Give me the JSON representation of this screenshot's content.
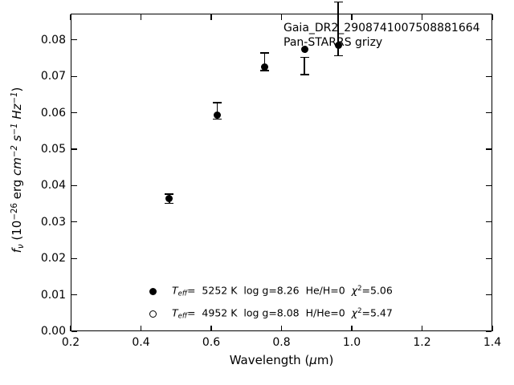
{
  "figure": {
    "background_color": "#ffffff",
    "foreground_color": "#000000"
  },
  "annotation": {
    "line1": "Gaia_DR2_2908741007508881664",
    "line2": "Pan-STARRS grizy"
  },
  "chart_data": {
    "type": "scatter",
    "title": "",
    "xlabel": "Wavelength (μm)",
    "ylabel": "fν (10−26 erg cm−2 s−1 Hz−1)",
    "xlabel_parts": [
      {
        "t": "Wavelength (",
        "s": "n"
      },
      {
        "t": "μ",
        "s": "i"
      },
      {
        "t": "m)",
        "s": "n"
      }
    ],
    "ylabel_parts": [
      {
        "t": "f",
        "s": "i"
      },
      {
        "t": "ν",
        "s": "sub-i"
      },
      {
        "t": " (10",
        "s": "n"
      },
      {
        "t": "−26",
        "s": "sup"
      },
      {
        "t": " erg ",
        "s": "n"
      },
      {
        "t": "cm",
        "s": "i"
      },
      {
        "t": "−2",
        "s": "sup-i"
      },
      {
        "t": " ",
        "s": "n"
      },
      {
        "t": "s",
        "s": "i"
      },
      {
        "t": "−1",
        "s": "sup-i"
      },
      {
        "t": " ",
        "s": "n"
      },
      {
        "t": "Hz",
        "s": "i"
      },
      {
        "t": "−1",
        "s": "sup-i"
      },
      {
        "t": ")",
        "s": "n"
      }
    ],
    "xlim": [
      0.2,
      1.4
    ],
    "ylim": [
      0,
      0.0872
    ],
    "x_ticks": [
      "0.2",
      "0.4",
      "0.6",
      "0.8",
      "1.0",
      "1.2",
      "1.4"
    ],
    "y_ticks": [
      "0.00",
      "0.01",
      "0.02",
      "0.03",
      "0.04",
      "0.05",
      "0.06",
      "0.07",
      "0.08"
    ],
    "grid": false,
    "annotations": [
      "Gaia_DR2_2908741007508881664",
      "Pan-STARRS grizy"
    ],
    "series": [
      {
        "name": "model-photometry",
        "marker": "filled-circle",
        "color": "#000000",
        "x": [
          0.481,
          0.617,
          0.752,
          0.866,
          0.962
        ],
        "y": [
          0.0365,
          0.0594,
          0.0726,
          0.0774,
          0.0784
        ]
      },
      {
        "name": "observed-photometry",
        "marker": "errorbar",
        "color": "#000000",
        "x": [
          0.481,
          0.617,
          0.752,
          0.866,
          0.962
        ],
        "y": [
          0.0364,
          0.0605,
          0.074,
          0.0728,
          0.083
        ],
        "yerr": [
          0.0013,
          0.0023,
          0.0024,
          0.0024,
          0.0074
        ]
      }
    ],
    "legend_position": "lower-left-inside",
    "legend_entries": [
      {
        "marker": "filled-circle",
        "label_text": "Teff=  5252 K  log g=8.26  He/H=0  χ2=5.06",
        "label_parts": [
          {
            "t": "T",
            "s": "i"
          },
          {
            "t": "eff",
            "s": "sub-i"
          },
          {
            "t": "=  5252 K  log g=8.26  He/H=0  ",
            "s": "n"
          },
          {
            "t": "χ",
            "s": "i"
          },
          {
            "t": "2",
            "s": "sup"
          },
          {
            "t": "=5.06",
            "s": "n"
          }
        ]
      },
      {
        "marker": "open-circle",
        "label_text": "Teff=  4952 K  log g=8.08  H/He=0  χ2=5.47",
        "label_parts": [
          {
            "t": "T",
            "s": "i"
          },
          {
            "t": "eff",
            "s": "sub-i"
          },
          {
            "t": "=  4952 K  log g=8.08  H/He=0  ",
            "s": "n"
          },
          {
            "t": "χ",
            "s": "i"
          },
          {
            "t": "2",
            "s": "sup"
          },
          {
            "t": "=5.47",
            "s": "n"
          }
        ]
      }
    ]
  }
}
